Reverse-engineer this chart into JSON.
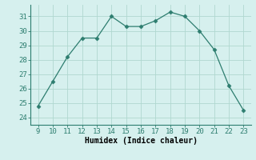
{
  "x": [
    9,
    10,
    11,
    12,
    13,
    14,
    15,
    16,
    17,
    18,
    19,
    20,
    21,
    22,
    23
  ],
  "y": [
    24.8,
    26.5,
    28.2,
    29.5,
    29.5,
    31.0,
    30.3,
    30.3,
    30.7,
    31.3,
    31.0,
    30.0,
    28.7,
    26.2,
    24.5
  ],
  "line_color": "#2d7d6f",
  "marker": "D",
  "marker_size": 2.5,
  "bg_color": "#d6f0ee",
  "grid_color": "#b0d8d0",
  "xlabel": "Humidex (Indice chaleur)",
  "xlabel_fontsize": 7,
  "xticks": [
    9,
    10,
    11,
    12,
    13,
    14,
    15,
    16,
    17,
    18,
    19,
    20,
    21,
    22,
    23
  ],
  "yticks": [
    24,
    25,
    26,
    27,
    28,
    29,
    30,
    31
  ],
  "ylim": [
    23.5,
    31.8
  ],
  "xlim": [
    8.5,
    23.5
  ],
  "tick_fontsize": 6.5
}
